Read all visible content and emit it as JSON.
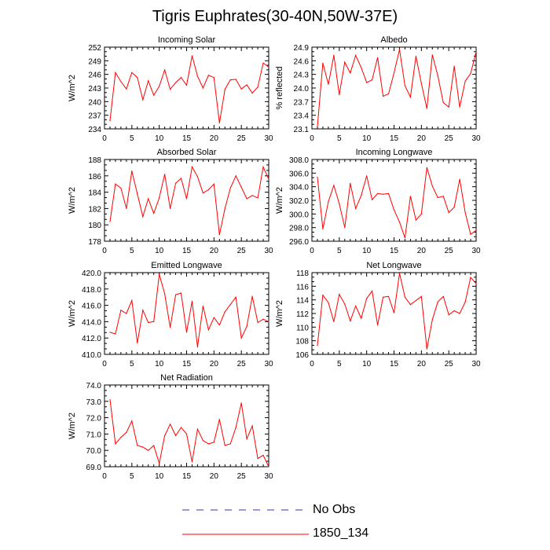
{
  "title": "Tigris Euphrates(30-40N,50W-37E)",
  "colors": {
    "model": "#ff0000",
    "obs": "#3333aa"
  },
  "legend": [
    {
      "label": "No Obs",
      "style": "dashed",
      "color": "#3333aa"
    },
    {
      "label": "1850_134",
      "style": "solid",
      "color": "#ff0000"
    }
  ],
  "chart_data": [
    {
      "type": "line",
      "title": "Incoming Solar",
      "ylabel": "W/m^2",
      "xlim": [
        0,
        30
      ],
      "ylim": [
        234,
        252
      ],
      "yticks": [
        "234",
        "237",
        "240",
        "243",
        "246",
        "249",
        "252"
      ],
      "xticks": [
        "0",
        "5",
        "10",
        "15",
        "20",
        "25",
        "30"
      ],
      "series": [
        {
          "name": "1850_134",
          "x": [
            1,
            2,
            3,
            4,
            5,
            6,
            7,
            8,
            9,
            10,
            11,
            12,
            13,
            14,
            15,
            16,
            17,
            18,
            19,
            20,
            21,
            22,
            23,
            24,
            25,
            26,
            27,
            28,
            29,
            30
          ],
          "values": [
            235.8,
            246.4,
            244.4,
            242.8,
            246.4,
            245.3,
            240.4,
            244.6,
            241.4,
            243.4,
            247.0,
            242.7,
            244.2,
            245.3,
            243.6,
            250.1,
            245.6,
            243.0,
            245.8,
            245.3,
            235.3,
            242.7,
            244.8,
            244.9,
            242.8,
            243.7,
            241.9,
            243.2,
            248.5,
            247.6
          ]
        }
      ]
    },
    {
      "type": "line",
      "title": "Albedo",
      "ylabel": "% reflected",
      "xlim": [
        0,
        30
      ],
      "ylim": [
        23.1,
        24.9
      ],
      "yticks": [
        "23.1",
        "23.4",
        "23.7",
        "24.0",
        "24.3",
        "24.6",
        "24.9"
      ],
      "xticks": [
        "0",
        "5",
        "10",
        "15",
        "20",
        "25",
        "30"
      ],
      "series": [
        {
          "name": "1850_134",
          "x": [
            1,
            2,
            3,
            4,
            5,
            6,
            7,
            8,
            9,
            10,
            11,
            12,
            13,
            14,
            15,
            16,
            17,
            18,
            19,
            20,
            21,
            22,
            23,
            24,
            25,
            26,
            27,
            28,
            29,
            30
          ],
          "values": [
            23.15,
            24.55,
            24.08,
            24.72,
            23.85,
            24.57,
            24.33,
            24.72,
            24.45,
            24.12,
            24.18,
            24.67,
            23.82,
            23.87,
            24.33,
            24.85,
            24.05,
            23.8,
            24.7,
            24.1,
            23.55,
            24.73,
            24.27,
            23.68,
            23.58,
            24.48,
            23.58,
            24.15,
            24.32,
            24.8
          ]
        }
      ]
    },
    {
      "type": "line",
      "title": "Absorbed Solar",
      "ylabel": "W/m^2",
      "xlim": [
        0,
        30
      ],
      "ylim": [
        178,
        188
      ],
      "yticks": [
        "178",
        "180",
        "182",
        "184",
        "186",
        "188"
      ],
      "xticks": [
        "0",
        "5",
        "10",
        "15",
        "20",
        "25",
        "30"
      ],
      "series": [
        {
          "name": "1850_134",
          "x": [
            1,
            2,
            3,
            4,
            5,
            6,
            7,
            8,
            9,
            10,
            11,
            12,
            13,
            14,
            15,
            16,
            17,
            18,
            19,
            20,
            21,
            22,
            23,
            24,
            25,
            26,
            27,
            28,
            29,
            30
          ],
          "values": [
            180.4,
            185.0,
            184.5,
            182.0,
            186.6,
            183.8,
            181.0,
            183.2,
            181.4,
            183.3,
            186.2,
            182.0,
            185.1,
            185.7,
            183.2,
            187.1,
            185.9,
            183.9,
            184.3,
            185.0,
            178.8,
            182.0,
            184.5,
            186.0,
            184.6,
            183.2,
            183.6,
            183.3,
            187.1,
            185.6
          ]
        }
      ]
    },
    {
      "type": "line",
      "title": "Incoming Longwave",
      "ylabel": "W/m^2",
      "xlim": [
        0,
        30
      ],
      "ylim": [
        296.0,
        308.0
      ],
      "yticks": [
        "296.0",
        "298.0",
        "300.0",
        "302.0",
        "304.0",
        "306.0",
        "308.0"
      ],
      "xticks": [
        "0",
        "5",
        "10",
        "15",
        "20",
        "25",
        "30"
      ],
      "series": [
        {
          "name": "1850_134",
          "x": [
            1,
            2,
            3,
            4,
            5,
            6,
            7,
            8,
            9,
            10,
            11,
            12,
            13,
            14,
            15,
            16,
            17,
            18,
            19,
            20,
            21,
            22,
            23,
            24,
            25,
            26,
            27,
            28,
            29,
            30
          ],
          "values": [
            305.4,
            297.8,
            301.8,
            304.2,
            301.5,
            298.0,
            304.5,
            300.8,
            302.7,
            305.6,
            302.1,
            303.0,
            302.9,
            303.0,
            300.6,
            298.8,
            296.5,
            302.6,
            299.1,
            300.0,
            306.8,
            304.1,
            302.4,
            302.6,
            300.2,
            301.0,
            305.1,
            300.2,
            297.0,
            297.6
          ]
        }
      ]
    },
    {
      "type": "line",
      "title": "Emitted Longwave",
      "ylabel": "W/m^2",
      "xlim": [
        0,
        30
      ],
      "ylim": [
        410.0,
        420.0
      ],
      "yticks": [
        "410.0",
        "412.0",
        "414.0",
        "416.0",
        "418.0",
        "420.0"
      ],
      "xticks": [
        "0",
        "5",
        "10",
        "15",
        "20",
        "25",
        "30"
      ],
      "series": [
        {
          "name": "1850_134",
          "x": [
            1,
            2,
            3,
            4,
            5,
            6,
            7,
            8,
            9,
            10,
            11,
            12,
            13,
            14,
            15,
            16,
            17,
            18,
            19,
            20,
            21,
            22,
            23,
            24,
            25,
            26,
            27,
            28,
            29,
            30
          ],
          "values": [
            412.7,
            412.5,
            415.4,
            415.0,
            416.6,
            411.4,
            415.4,
            413.9,
            414.0,
            419.8,
            417.4,
            413.3,
            417.3,
            417.5,
            412.7,
            416.5,
            410.9,
            415.9,
            413.0,
            414.5,
            413.6,
            415.2,
            416.1,
            417.0,
            412.0,
            413.4,
            417.1,
            413.9,
            414.3,
            414.0
          ]
        }
      ]
    },
    {
      "type": "line",
      "title": "Net Longwave",
      "ylabel": "W/m^2",
      "xlim": [
        0,
        30
      ],
      "ylim": [
        106,
        118
      ],
      "yticks": [
        "106",
        "108",
        "110",
        "112",
        "114",
        "116",
        "118"
      ],
      "xticks": [
        "0",
        "5",
        "10",
        "15",
        "20",
        "25",
        "30"
      ],
      "series": [
        {
          "name": "1850_134",
          "x": [
            1,
            2,
            3,
            4,
            5,
            6,
            7,
            8,
            9,
            10,
            11,
            12,
            13,
            14,
            15,
            16,
            17,
            18,
            19,
            20,
            21,
            22,
            23,
            24,
            25,
            26,
            27,
            28,
            29,
            30
          ],
          "values": [
            107.3,
            114.7,
            113.6,
            110.8,
            114.8,
            113.4,
            110.9,
            113.1,
            111.3,
            114.2,
            115.3,
            110.3,
            114.4,
            114.5,
            112.1,
            117.9,
            114.4,
            113.3,
            113.9,
            114.5,
            106.8,
            111.1,
            113.7,
            114.5,
            111.8,
            112.4,
            112.0,
            113.7,
            117.3,
            116.4
          ]
        }
      ]
    },
    {
      "type": "line",
      "title": "Net Radiation",
      "ylabel": "W/m^2",
      "xlim": [
        0,
        30
      ],
      "ylim": [
        69.0,
        74.0
      ],
      "yticks": [
        "69.0",
        "70.0",
        "71.0",
        "72.0",
        "73.0",
        "74.0"
      ],
      "xticks": [
        "0",
        "5",
        "10",
        "15",
        "20",
        "25",
        "30"
      ],
      "series": [
        {
          "name": "1850_134",
          "x": [
            1,
            2,
            3,
            4,
            5,
            6,
            7,
            8,
            9,
            10,
            11,
            12,
            13,
            14,
            15,
            16,
            17,
            18,
            19,
            20,
            21,
            22,
            23,
            24,
            25,
            26,
            27,
            28,
            29,
            30
          ],
          "values": [
            73.1,
            70.4,
            70.8,
            71.1,
            71.8,
            70.3,
            70.2,
            70.0,
            70.3,
            69.2,
            70.9,
            71.6,
            70.9,
            71.4,
            71.0,
            69.3,
            71.3,
            70.6,
            70.4,
            70.5,
            71.9,
            70.3,
            70.4,
            71.4,
            72.9,
            70.7,
            71.5,
            69.5,
            69.7,
            69.0
          ]
        }
      ]
    }
  ]
}
